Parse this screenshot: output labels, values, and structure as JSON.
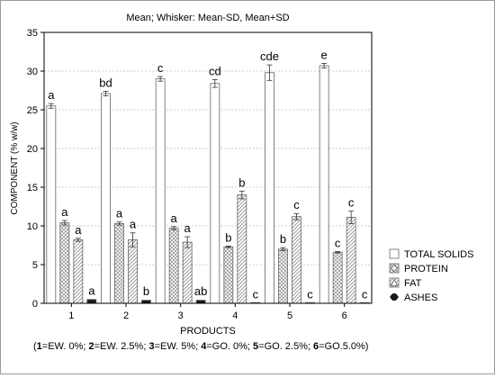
{
  "chart_data": {
    "type": "bar",
    "title": "Mean;  Whisker: Mean-SD, Mean+SD",
    "xlabel": "PRODUCTS",
    "ylabel": "COMPONENT (% w/w)",
    "ylim": [
      0,
      35
    ],
    "yticks": [
      0,
      5,
      10,
      15,
      20,
      25,
      30,
      35
    ],
    "grid": true,
    "legend_position": "bottom-right",
    "categories": [
      "1",
      "2",
      "3",
      "4",
      "5",
      "6"
    ],
    "series": [
      {
        "name": "TOTAL SOLIDS",
        "pattern": "white",
        "values": [
          25.5,
          27.1,
          29.0,
          28.4,
          29.8,
          30.7
        ],
        "sd": [
          0.3,
          0.3,
          0.3,
          0.5,
          1.0,
          0.3
        ],
        "letters": [
          "a",
          "bd",
          "c",
          "cd",
          "cde",
          "e"
        ]
      },
      {
        "name": "PROTEIN",
        "pattern": "crosshatch",
        "values": [
          10.4,
          10.3,
          9.7,
          7.3,
          7.0,
          6.6
        ],
        "sd": [
          0.3,
          0.2,
          0.2,
          0.1,
          0.2,
          0.1
        ],
        "letters": [
          "a",
          "a",
          "a",
          "b",
          "b",
          "c"
        ]
      },
      {
        "name": "FAT",
        "pattern": "hatch",
        "values": [
          8.2,
          8.2,
          7.9,
          14.0,
          11.2,
          11.1
        ],
        "sd": [
          0.2,
          0.9,
          0.7,
          0.5,
          0.4,
          0.8
        ],
        "letters": [
          "a",
          "a",
          "a",
          "b",
          "c",
          "c"
        ]
      },
      {
        "name": "ASHES",
        "pattern": "dark",
        "values": [
          0.5,
          0.4,
          0.4,
          0.05,
          0.05,
          0.05
        ],
        "sd": [
          0.05,
          0.05,
          0.05,
          0.01,
          0.01,
          0.01
        ],
        "letters": [
          "a",
          "b",
          "ab",
          "c",
          "c",
          "c"
        ]
      }
    ],
    "annotations": [
      {
        "index": "1",
        "label": "EW. 0%"
      },
      {
        "index": "2",
        "label": "EW. 2.5%"
      },
      {
        "index": "3",
        "label": "EW. 5%"
      },
      {
        "index": "4",
        "label": "GO. 0%"
      },
      {
        "index": "5",
        "label": "GO. 2.5%"
      },
      {
        "index": "6",
        "label": "GO.5.0%"
      }
    ],
    "colors": {
      "bar_stroke": "#666666",
      "bar_fill_light": "#ffffff",
      "bar_fill_dark": "#1a1a1a",
      "grid": "#bdbdbd",
      "axis": "#000000"
    }
  }
}
